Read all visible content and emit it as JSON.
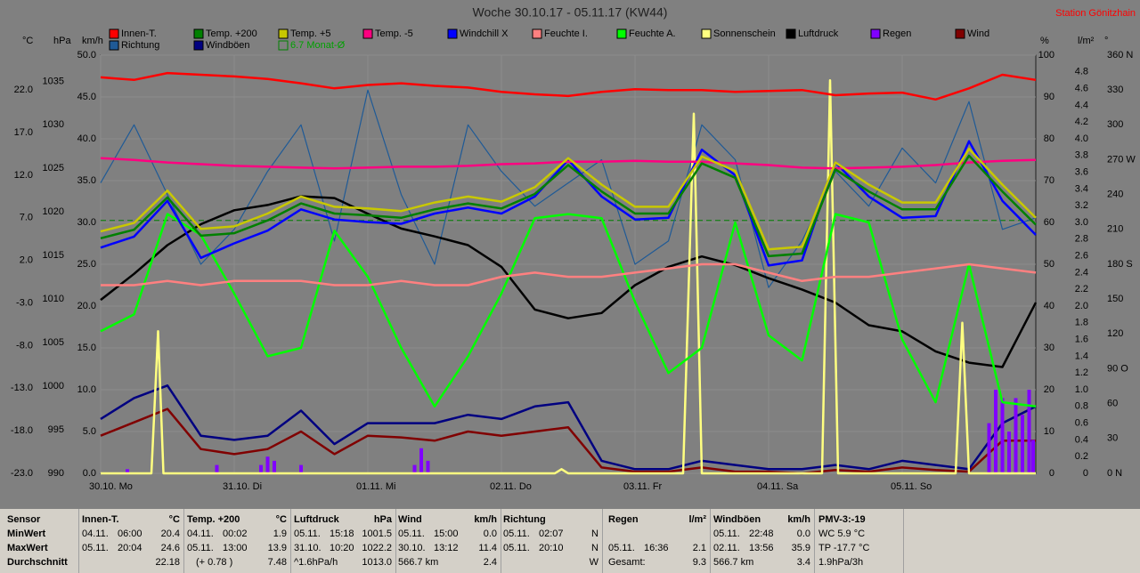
{
  "chart_data": {
    "type": "line",
    "title": "Woche 30.10.17 - 05.11.17 (KW44)",
    "subtitle": "Station Gönitzhain",
    "xlim": [
      0,
      7
    ],
    "xticks": [
      {
        "value": 0,
        "label": "30.10. Mo"
      },
      {
        "value": 1,
        "label": "31.10. Di"
      },
      {
        "value": 2,
        "label": "01.11. Mi"
      },
      {
        "value": 3,
        "label": "02.11. Do"
      },
      {
        "value": 4,
        "label": "03.11. Fr"
      },
      {
        "value": 5,
        "label": "04.11. Sa"
      },
      {
        "value": 6,
        "label": "05.11. So"
      }
    ],
    "x": [
      0,
      0.25,
      0.5,
      0.75,
      1,
      1.25,
      1.5,
      1.75,
      2,
      2.25,
      2.5,
      2.75,
      3,
      3.25,
      3.5,
      3.75,
      4,
      4.25,
      4.5,
      4.75,
      5,
      5.25,
      5.5,
      5.75,
      6,
      6.25,
      6.5,
      6.75,
      7
    ],
    "axes": [
      {
        "unit": "°C",
        "side": "left",
        "lim": [
          -23,
          26.1
        ],
        "ticks": [
          {
            "value": 22,
            "label": "22.0"
          },
          {
            "value": 17,
            "label": "17.0"
          },
          {
            "value": 12,
            "label": "12.0"
          },
          {
            "value": 7,
            "label": "7.0"
          },
          {
            "value": 2,
            "label": "2.0"
          },
          {
            "value": -3,
            "label": "-3.0"
          },
          {
            "value": -8,
            "label": "-8.0"
          },
          {
            "value": -13,
            "label": "-13.0"
          },
          {
            "value": -18,
            "label": "-18.0"
          },
          {
            "value": -23,
            "label": "-23.0"
          }
        ]
      },
      {
        "unit": "hPa",
        "side": "left",
        "lim": [
          990,
          1038
        ],
        "ticks": [
          1035,
          1030,
          1025,
          1020,
          1015,
          1010,
          1005,
          1000,
          995,
          990
        ]
      },
      {
        "unit": "km/h",
        "side": "left",
        "lim": [
          0,
          50
        ],
        "grid": true,
        "ticks": [
          {
            "value": 50,
            "label": "50.0"
          },
          {
            "value": 45,
            "label": "45.0"
          },
          {
            "value": 40,
            "label": "40.0"
          },
          {
            "value": 35,
            "label": "35.0"
          },
          {
            "value": 30,
            "label": "30.0"
          },
          {
            "value": 25,
            "label": "25.0"
          },
          {
            "value": 20,
            "label": "20.0"
          },
          {
            "value": 15,
            "label": "15.0"
          },
          {
            "value": 10,
            "label": "10.0"
          },
          {
            "value": 5,
            "label": "5.0"
          },
          {
            "value": 0,
            "label": "0.0"
          }
        ]
      },
      {
        "unit": "%",
        "side": "right",
        "lim": [
          0,
          100
        ],
        "ticks": [
          100,
          90,
          80,
          70,
          60,
          50,
          40,
          30,
          20,
          10,
          0
        ]
      },
      {
        "unit": "l/m²",
        "side": "right",
        "lim": [
          0,
          5
        ],
        "ticks": [
          4.8,
          4.6,
          4.4,
          4.2,
          {
            "value": 4,
            "label": "4.0"
          },
          3.8,
          3.6,
          3.4,
          3.2,
          {
            "value": 3,
            "label": "3.0"
          },
          2.8,
          2.6,
          2.4,
          2.2,
          {
            "value": 2,
            "label": "2.0"
          },
          1.8,
          1.6,
          1.4,
          1.2,
          {
            "value": 1,
            "label": "1.0"
          },
          0.8,
          0.6,
          0.4,
          0.2,
          0
        ]
      },
      {
        "unit": "°",
        "side": "right",
        "lim": [
          0,
          360
        ],
        "ticks": [
          {
            "value": 360,
            "label": "360 N"
          },
          330,
          300,
          {
            "value": 270,
            "label": "270 W"
          },
          240,
          210,
          {
            "value": 180,
            "label": "180 S"
          },
          150,
          120,
          {
            "value": 90,
            "label": "90 O"
          },
          60,
          30,
          {
            "value": 0,
            "label": "0 N"
          }
        ]
      }
    ],
    "series": [
      {
        "name": "Innen-T.",
        "color": "#ff0000",
        "axis": "°C",
        "values": [
          23.5,
          23.2,
          24.0,
          23.8,
          23.6,
          23.3,
          22.8,
          22.2,
          22.6,
          22.8,
          22.5,
          22.3,
          21.8,
          21.5,
          21.3,
          21.8,
          22.1,
          22.0,
          22.0,
          21.8,
          21.9,
          22.0,
          21.4,
          21.6,
          21.7,
          20.9,
          22.2,
          23.8,
          23.2
        ]
      },
      {
        "name": "Temp. +200",
        "color": "#008000",
        "axis": "°C",
        "values": [
          4.6,
          5.6,
          9.4,
          4.9,
          5.2,
          6.7,
          8.7,
          7.5,
          7.3,
          7.0,
          8.0,
          8.7,
          8.1,
          9.8,
          13.2,
          10.1,
          7.5,
          7.5,
          13.4,
          11.7,
          2.5,
          2.8,
          12.7,
          10.1,
          8.0,
          8.0,
          14.3,
          10.1,
          6.2
        ]
      },
      {
        "name": "Temp. +5",
        "color": "#c8c800",
        "axis": "°C",
        "values": [
          5.4,
          6.4,
          10.2,
          5.7,
          6.0,
          7.5,
          9.5,
          8.3,
          8.1,
          7.8,
          8.8,
          9.5,
          8.9,
          10.6,
          14.0,
          10.9,
          8.3,
          8.3,
          14.2,
          12.5,
          3.3,
          3.6,
          13.5,
          10.9,
          8.8,
          8.8,
          15.1,
          10.9,
          7.0
        ]
      },
      {
        "name": "Temp. -5",
        "color": "#ff0080",
        "axis": "°C",
        "values": [
          14.0,
          13.8,
          13.5,
          13.3,
          13.1,
          13.0,
          12.9,
          12.8,
          12.9,
          13.0,
          13.0,
          13.1,
          13.3,
          13.4,
          13.6,
          13.6,
          13.7,
          13.6,
          13.6,
          13.4,
          13.2,
          12.9,
          12.8,
          12.9,
          13.0,
          13.2,
          13.5,
          13.7,
          13.8
        ]
      },
      {
        "name": "Windchill X",
        "color": "#0000ff",
        "axis": "°C",
        "values": [
          3.5,
          4.8,
          9.0,
          2.3,
          4.0,
          5.5,
          8.0,
          6.8,
          6.5,
          6.3,
          7.5,
          8.2,
          7.5,
          9.5,
          13.8,
          9.5,
          6.8,
          7.0,
          15.0,
          12.0,
          1.4,
          2.0,
          13.5,
          9.5,
          7.0,
          7.2,
          16.0,
          9.0,
          5.0
        ]
      },
      {
        "name": "Feuchte I.",
        "color": "#ff8080",
        "axis": "%",
        "values": [
          45,
          45,
          46,
          45,
          46,
          46,
          46,
          45,
          45,
          46,
          45,
          45,
          47,
          48,
          47,
          47,
          48,
          49,
          50,
          50,
          48,
          46,
          47,
          47,
          48,
          49,
          50,
          49,
          48
        ]
      },
      {
        "name": "Feuchte A.",
        "color": "#00ff00",
        "axis": "%",
        "values": [
          34,
          38,
          62,
          57,
          43,
          28,
          30,
          58,
          47,
          30,
          16,
          28,
          43,
          61,
          62,
          61,
          41,
          24,
          30,
          60,
          33,
          27,
          62,
          60,
          32,
          17,
          50,
          17,
          16
        ]
      },
      {
        "name": "Sonnenschein",
        "color": "#ffff80",
        "axis": "%",
        "x": [
          0,
          0.38,
          0.43,
          0.47,
          3.4,
          3.45,
          3.5,
          4.36,
          4.44,
          4.5,
          5.4,
          5.46,
          5.52,
          6.4,
          6.45,
          6.5,
          7
        ],
        "values": [
          0,
          0,
          34,
          0,
          0,
          1,
          0,
          0,
          86,
          0,
          0,
          94,
          0,
          0,
          36,
          0,
          0
        ]
      },
      {
        "name": "Luftdruck",
        "color": "#000000",
        "axis": "hPa",
        "values": [
          1009.9,
          1012.9,
          1016.2,
          1018.6,
          1020.2,
          1020.8,
          1021.8,
          1021.6,
          1019.8,
          1018.1,
          1017.2,
          1016.2,
          1013.7,
          1008.8,
          1007.8,
          1008.4,
          1011.6,
          1013.7,
          1014.9,
          1013.9,
          1012.4,
          1011.1,
          1009.6,
          1007.0,
          1006.3,
          1004.0,
          1002.7,
          1002.2,
          1009.6
        ]
      },
      {
        "name": "Regen",
        "color": "#8000ff",
        "axis": "l/m²",
        "mark": "bar",
        "x": [
          0.2,
          0.87,
          1.2,
          1.25,
          1.3,
          1.5,
          2.35,
          2.4,
          2.45,
          6.65,
          6.7,
          6.75,
          6.8,
          6.85,
          6.9,
          6.95,
          6.98
        ],
        "values": [
          0.05,
          0.1,
          0.1,
          0.2,
          0.15,
          0.1,
          0.1,
          0.3,
          0.15,
          0.6,
          1.0,
          0.9,
          0.5,
          0.9,
          0.7,
          1.0,
          0.4
        ]
      },
      {
        "name": "Wind",
        "color": "#800000",
        "axis": "km/h",
        "values": [
          4.5,
          6.1,
          7.7,
          2.9,
          2.3,
          2.9,
          5.0,
          2.3,
          4.5,
          4.3,
          3.9,
          5.0,
          4.5,
          5.0,
          5.5,
          0.7,
          0.2,
          0.2,
          0.7,
          0.2,
          0.2,
          0,
          0.4,
          0.2,
          0.7,
          0.4,
          0.2,
          3.9,
          3.9
        ]
      },
      {
        "name": "Richtung",
        "color": "#1f5a96",
        "axis": "°",
        "values": [
          250,
          300,
          240,
          180,
          210,
          260,
          300,
          200,
          330,
          240,
          180,
          300,
          260,
          230,
          250,
          270,
          180,
          200,
          300,
          270,
          160,
          200,
          260,
          230,
          280,
          250,
          320,
          210,
          220
        ]
      },
      {
        "name": "Windböen",
        "color": "#000080",
        "axis": "km/h",
        "values": [
          6.5,
          9,
          10.5,
          4.5,
          4,
          4.5,
          7.5,
          3.5,
          6,
          6,
          6,
          7,
          6.5,
          8,
          8.5,
          1.5,
          0.5,
          0.5,
          1.5,
          1.0,
          0.5,
          0.5,
          1,
          0.5,
          1.5,
          1.0,
          0.5,
          6,
          8
        ]
      },
      {
        "name": "6.7 Monat-Ø",
        "color": "#008000",
        "axis": "°C",
        "dash": true,
        "x": [
          0,
          7
        ],
        "values": [
          6.7,
          6.7
        ]
      }
    ]
  },
  "stats_table": {
    "row_labels": [
      "Sensor",
      "MinWert",
      "MaxWert",
      "Durchschnitt"
    ],
    "groups": [
      {
        "title": "Innen-T.",
        "unit": "°C",
        "rows": [
          [
            "04.11.",
            "06:00",
            "20.4"
          ],
          [
            "05.11.",
            "20:04",
            "24.6"
          ],
          [
            null,
            null,
            "22.18"
          ]
        ]
      },
      {
        "title": "Temp. +200",
        "unit": "°C",
        "rows": [
          [
            "04.11.",
            "00:02",
            "1.9"
          ],
          [
            "05.11.",
            "13:00",
            "13.9"
          ],
          [
            null,
            "(+ 0.78 )",
            "7.48"
          ]
        ]
      },
      {
        "title": "Luftdruck",
        "unit": "hPa",
        "rows": [
          [
            "05.11.",
            "15:18",
            "1001.5"
          ],
          [
            "31.10.",
            "10:20",
            "1022.2"
          ],
          [
            "^1.6hPa/h",
            null,
            "1013.0"
          ]
        ]
      },
      {
        "title": "Wind",
        "unit": "km/h",
        "rows": [
          [
            "05.11.",
            "15:00",
            "0.0"
          ],
          [
            "30.10.",
            "13:12",
            "11.4"
          ],
          [
            "566.7 km",
            null,
            "2.4"
          ]
        ]
      },
      {
        "title": "Richtung",
        "unit": null,
        "rows": [
          [
            "05.11.",
            "02:07",
            "N"
          ],
          [
            "05.11.",
            "20:10",
            "N"
          ],
          [
            null,
            null,
            "W"
          ]
        ]
      },
      {
        "title": "Regen",
        "unit": "l/m²",
        "rows": [
          null,
          [
            "05.11.",
            "16:36",
            "2.1"
          ],
          [
            "Gesamt:",
            null,
            "9.3"
          ]
        ]
      },
      {
        "title": "Windböen",
        "unit": "km/h",
        "rows": [
          [
            "05.11.",
            "22:48",
            "0.0"
          ],
          [
            "02.11.",
            "13:56",
            "35.9"
          ],
          [
            "566.7 km",
            null,
            "3.4"
          ]
        ]
      },
      {
        "title": "PMV-3:-19",
        "unit": null,
        "rows": [
          [
            "WC 5.9 °C"
          ],
          [
            "TP -17.7 °C"
          ],
          [
            "1.9hPa/3h"
          ]
        ]
      }
    ]
  }
}
